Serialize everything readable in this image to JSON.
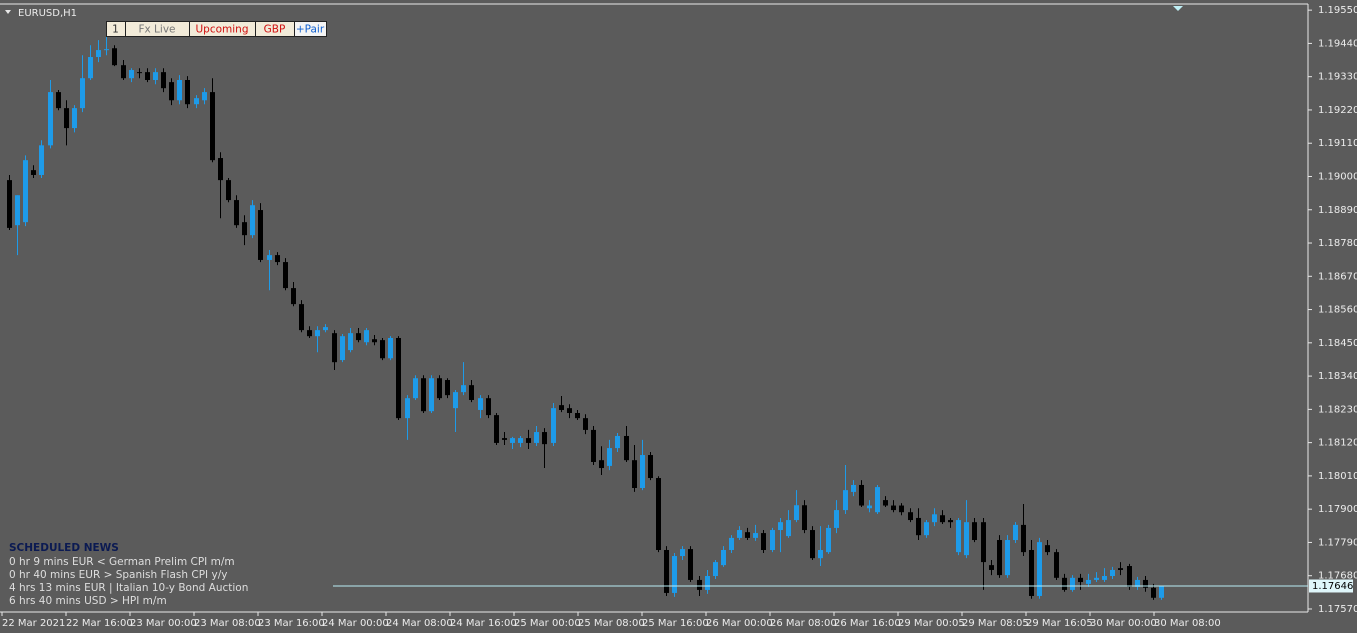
{
  "symbol": "EURUSD,H1",
  "buttons": [
    "1",
    "Fx Live",
    "Upcoming",
    "GBP",
    "+Pair"
  ],
  "news": {
    "title": "SCHEDULED NEWS",
    "items": [
      "0 hr 9 mins  EUR  <  German Prelim CPI m/m",
      "0 hr 40 mins  EUR  >  Spanish Flash CPI y/y",
      "4 hrs 13 mins  EUR  |  Italian 10-y Bond Auction",
      "6 hrs 40 mins  USD  >  HPI m/m"
    ]
  },
  "chart_data": {
    "type": "candlestick",
    "colors": {
      "up": "#1e9be9",
      "down": "#000000"
    },
    "ylim": [
      1.1756,
      1.19567
    ],
    "yticks": [
      {
        "value": 1.1955,
        "label": "1.19550"
      },
      {
        "value": 1.1944,
        "label": "1.19440"
      },
      {
        "value": 1.1933,
        "label": "1.19330"
      },
      {
        "value": 1.1922,
        "label": "1.19220"
      },
      {
        "value": 1.1911,
        "label": "1.19110"
      },
      {
        "value": 1.19,
        "label": "1.19000"
      },
      {
        "value": 1.1889,
        "label": "1.18890"
      },
      {
        "value": 1.1878,
        "label": "1.18780"
      },
      {
        "value": 1.1867,
        "label": "1.18670"
      },
      {
        "value": 1.1856,
        "label": "1.18560"
      },
      {
        "value": 1.1845,
        "label": "1.18450"
      },
      {
        "value": 1.1834,
        "label": "1.18340"
      },
      {
        "value": 1.1823,
        "label": "1.18230"
      },
      {
        "value": 1.1812,
        "label": "1.18120"
      },
      {
        "value": 1.1801,
        "label": "1.18010"
      },
      {
        "value": 1.179,
        "label": "1.17900"
      },
      {
        "value": 1.1779,
        "label": "1.17790"
      },
      {
        "value": 1.1768,
        "label": "1.17680"
      },
      {
        "value": 1.1757,
        "label": "1.17570"
      }
    ],
    "x_labels": [
      "22 Mar 2021",
      "22 Mar 16:00",
      "23 Mar 00:00",
      "23 Mar 08:00",
      "23 Mar 16:00",
      "24 Mar 00:00",
      "24 Mar 08:00",
      "24 Mar 16:00",
      "25 Mar 00:00",
      "25 Mar 08:00",
      "25 Mar 16:00",
      "26 Mar 00:00",
      "26 Mar 08:00",
      "26 Mar 16:00",
      "29 Mar 00:05",
      "29 Mar 08:05",
      "29 Mar 16:05",
      "30 Mar 00:00",
      "30 Mar 08:00"
    ],
    "current_price": 1.17646,
    "candles": [
      [
        1.18988,
        1.19005,
        1.18823,
        1.1883
      ],
      [
        1.18839,
        1.18938,
        1.1874,
        1.18938
      ],
      [
        1.18849,
        1.1907,
        1.18836,
        1.19054
      ],
      [
        1.19021,
        1.19037,
        1.18995,
        1.19005
      ],
      [
        1.19005,
        1.1912,
        1.18995,
        1.19103
      ],
      [
        1.19103,
        1.19319,
        1.19093,
        1.19279
      ],
      [
        1.19279,
        1.19286,
        1.19219,
        1.19226
      ],
      [
        1.19226,
        1.19252,
        1.19103,
        1.1916
      ],
      [
        1.1916,
        1.19236,
        1.19146,
        1.19226
      ],
      [
        1.19226,
        1.19401,
        1.19213,
        1.19325
      ],
      [
        1.19325,
        1.19434,
        1.19319,
        1.19395
      ],
      [
        1.19395,
        1.19451,
        1.19378,
        1.19418
      ],
      [
        1.19418,
        1.19461,
        1.19401,
        1.19421
      ],
      [
        1.19424,
        1.19434,
        1.19365,
        1.19368
      ],
      [
        1.19368,
        1.19385,
        1.19319,
        1.19325
      ],
      [
        1.19325,
        1.19358,
        1.19312,
        1.19352
      ],
      [
        1.19345,
        1.19358,
        1.19325,
        1.19342
      ],
      [
        1.19345,
        1.19358,
        1.19312,
        1.19319
      ],
      [
        1.19319,
        1.19358,
        1.19305,
        1.19345
      ],
      [
        1.19345,
        1.19358,
        1.19279,
        1.19292
      ],
      [
        1.19312,
        1.19325,
        1.19236,
        1.19252
      ],
      [
        1.19252,
        1.19335,
        1.19239,
        1.19319
      ],
      [
        1.19319,
        1.19332,
        1.19226,
        1.19239
      ],
      [
        1.19239,
        1.19269,
        1.19226,
        1.19259
      ],
      [
        1.19252,
        1.19292,
        1.19239,
        1.19279
      ],
      [
        1.19279,
        1.19325,
        1.19047,
        1.19054
      ],
      [
        1.19061,
        1.1908,
        1.18862,
        1.18988
      ],
      [
        1.18988,
        1.18995,
        1.18915,
        1.18922
      ],
      [
        1.18922,
        1.18938,
        1.1883,
        1.18839
      ],
      [
        1.18849,
        1.18872,
        1.18773,
        1.18806
      ],
      [
        1.18806,
        1.18922,
        1.18796,
        1.18905
      ],
      [
        1.18889,
        1.18912,
        1.18717,
        1.18724
      ],
      [
        1.18724,
        1.18757,
        1.18624,
        1.1874
      ],
      [
        1.1874,
        1.1875,
        1.18707,
        1.18717
      ],
      [
        1.18717,
        1.1873,
        1.18624,
        1.18631
      ],
      [
        1.18631,
        1.18651,
        1.18571,
        1.18578
      ],
      [
        1.18578,
        1.18591,
        1.18485,
        1.18492
      ],
      [
        1.18492,
        1.18505,
        1.18466,
        1.18472
      ],
      [
        1.18472,
        1.18505,
        1.18419,
        1.18492
      ],
      [
        1.18492,
        1.18512,
        1.18485,
        1.18502
      ],
      [
        1.18482,
        1.18492,
        1.1836,
        1.18386
      ],
      [
        1.18393,
        1.18479,
        1.18386,
        1.18472
      ],
      [
        1.18426,
        1.18499,
        1.18419,
        1.18482
      ],
      [
        1.18482,
        1.18499,
        1.18452,
        1.18459
      ],
      [
        1.18452,
        1.18499,
        1.18442,
        1.18492
      ],
      [
        1.18462,
        1.18476,
        1.18442,
        1.18452
      ],
      [
        1.18459,
        1.18466,
        1.18393,
        1.18399
      ],
      [
        1.18399,
        1.18472,
        1.18393,
        1.18466
      ],
      [
        1.18466,
        1.18472,
        1.18195,
        1.18201
      ],
      [
        1.18201,
        1.18277,
        1.18129,
        1.18267
      ],
      [
        1.18267,
        1.18343,
        1.18261,
        1.18333
      ],
      [
        1.18333,
        1.18343,
        1.18218,
        1.18224
      ],
      [
        1.18224,
        1.18343,
        1.18218,
        1.18333
      ],
      [
        1.18333,
        1.18343,
        1.18261,
        1.18267
      ],
      [
        1.18327,
        1.18333,
        1.18267,
        1.18277
      ],
      [
        1.18234,
        1.18294,
        1.18155,
        1.18287
      ],
      [
        1.18287,
        1.18386,
        1.18277,
        1.1831
      ],
      [
        1.1831,
        1.18327,
        1.18254,
        1.18261
      ],
      [
        1.18228,
        1.18277,
        1.18201,
        1.18267
      ],
      [
        1.18267,
        1.18277,
        1.18201,
        1.18211
      ],
      [
        1.18211,
        1.18218,
        1.18112,
        1.18119
      ],
      [
        1.18135,
        1.18155,
        1.18112,
        1.18129
      ],
      [
        1.18119,
        1.18139,
        1.18099,
        1.18135
      ],
      [
        1.18119,
        1.18142,
        1.18105,
        1.18135
      ],
      [
        1.18135,
        1.18162,
        1.18099,
        1.18119
      ],
      [
        1.18119,
        1.18175,
        1.18109,
        1.18155
      ],
      [
        1.18155,
        1.18168,
        1.18036,
        1.18115
      ],
      [
        1.18119,
        1.18251,
        1.18109,
        1.18234
      ],
      [
        1.18244,
        1.18274,
        1.18221,
        1.18228
      ],
      [
        1.18234,
        1.18247,
        1.18201,
        1.18218
      ],
      [
        1.18218,
        1.18228,
        1.18195,
        1.18201
      ],
      [
        1.18201,
        1.18214,
        1.18148,
        1.18162
      ],
      [
        1.18162,
        1.18175,
        1.18046,
        1.18056
      ],
      [
        1.18062,
        1.18108,
        1.18013,
        1.18036
      ],
      [
        1.18043,
        1.18129,
        1.18029,
        1.18102
      ],
      [
        1.18102,
        1.18152,
        1.18089,
        1.18142
      ],
      [
        1.18142,
        1.18175,
        1.18056,
        1.18062
      ],
      [
        1.18062,
        1.18112,
        1.17957,
        1.1797
      ],
      [
        1.1797,
        1.18129,
        1.17963,
        1.18079
      ],
      [
        1.18079,
        1.18089,
        1.17996,
        1.18003
      ],
      [
        1.18003,
        1.18009,
        1.17758,
        1.17765
      ],
      [
        1.17765,
        1.17778,
        1.17613,
        1.17623
      ],
      [
        1.17623,
        1.17755,
        1.1761,
        1.17745
      ],
      [
        1.17745,
        1.17778,
        1.17732,
        1.17768
      ],
      [
        1.17768,
        1.17778,
        1.17659,
        1.17666
      ],
      [
        1.17666,
        1.17679,
        1.17613,
        1.17633
      ],
      [
        1.17633,
        1.17699,
        1.1762,
        1.17679
      ],
      [
        1.17679,
        1.17732,
        1.17669,
        1.17725
      ],
      [
        1.17715,
        1.17778,
        1.17709,
        1.17765
      ],
      [
        1.17765,
        1.17814,
        1.17755,
        1.17805
      ],
      [
        1.17805,
        1.17844,
        1.17798,
        1.17831
      ],
      [
        1.17824,
        1.17838,
        1.17798,
        1.17805
      ],
      [
        1.17805,
        1.17848,
        1.17795,
        1.17821
      ],
      [
        1.17821,
        1.17831,
        1.17755,
        1.17765
      ],
      [
        1.17765,
        1.17838,
        1.17758,
        1.17831
      ],
      [
        1.17831,
        1.17871,
        1.17758,
        1.17857
      ],
      [
        1.17811,
        1.17897,
        1.17805,
        1.17864
      ],
      [
        1.17864,
        1.17963,
        1.17857,
        1.17913
      ],
      [
        1.17913,
        1.1793,
        1.17821,
        1.17831
      ],
      [
        1.17831,
        1.17844,
        1.17732,
        1.17738
      ],
      [
        1.17738,
        1.17844,
        1.17712,
        1.17765
      ],
      [
        1.17758,
        1.17848,
        1.17752,
        1.17838
      ],
      [
        1.17838,
        1.1793,
        1.17821,
        1.17897
      ],
      [
        1.17897,
        1.18046,
        1.17884,
        1.17963
      ],
      [
        1.17957,
        1.17996,
        1.17943,
        1.1798
      ],
      [
        1.1798,
        1.17996,
        1.17907,
        1.17912
      ],
      [
        1.17903,
        1.1793,
        1.1789,
        1.17912
      ],
      [
        1.1789,
        1.1798,
        1.17884,
        1.17973
      ],
      [
        1.1793,
        1.17943,
        1.17907,
        1.17912
      ],
      [
        1.17912,
        1.1793,
        1.1789,
        1.17897
      ],
      [
        1.17912,
        1.1792,
        1.1788,
        1.1789
      ],
      [
        1.1789,
        1.17903,
        1.17857,
        1.17864
      ],
      [
        1.17871,
        1.17903,
        1.17798,
        1.17814
      ],
      [
        1.17814,
        1.17864,
        1.17805,
        1.17857
      ],
      [
        1.17857,
        1.17903,
        1.17844,
        1.17883
      ],
      [
        1.1788,
        1.17897,
        1.17851,
        1.17857
      ],
      [
        1.17864,
        1.17871,
        1.17838,
        1.17857
      ],
      [
        1.17758,
        1.17871,
        1.17748,
        1.17864
      ],
      [
        1.17748,
        1.1793,
        1.17738,
        1.17857
      ],
      [
        1.17857,
        1.17871,
        1.17791,
        1.17798
      ],
      [
        1.17857,
        1.17871,
        1.17633,
        1.17725
      ],
      [
        1.17715,
        1.17732,
        1.17682,
        1.17699
      ],
      [
        1.17798,
        1.17814,
        1.17673,
        1.17682
      ],
      [
        1.17682,
        1.17814,
        1.17673,
        1.17798
      ],
      [
        1.17798,
        1.17857,
        1.17788,
        1.17848
      ],
      [
        1.17848,
        1.17917,
        1.17745,
        1.17758
      ],
      [
        1.17765,
        1.17798,
        1.17604,
        1.17613
      ],
      [
        1.17613,
        1.17805,
        1.17604,
        1.17791
      ],
      [
        1.17781,
        1.17798,
        1.17748,
        1.17758
      ],
      [
        1.17758,
        1.17768,
        1.17666,
        1.17673
      ],
      [
        1.17673,
        1.17686,
        1.17627,
        1.17633
      ],
      [
        1.17633,
        1.17682,
        1.17627,
        1.17673
      ],
      [
        1.17673,
        1.17686,
        1.17633,
        1.17659
      ],
      [
        1.17653,
        1.17686,
        1.17643,
        1.17666
      ],
      [
        1.17666,
        1.17692,
        1.17659,
        1.17673
      ],
      [
        1.17666,
        1.17705,
        1.17659,
        1.17679
      ],
      [
        1.17679,
        1.17709,
        1.17669,
        1.17699
      ],
      [
        1.17705,
        1.17725,
        1.17682,
        1.17699
      ],
      [
        1.17712,
        1.17719,
        1.17633,
        1.17643
      ],
      [
        1.17643,
        1.17676,
        1.17633,
        1.17666
      ],
      [
        1.17666,
        1.17679,
        1.17627,
        1.1764
      ],
      [
        1.1764,
        1.17653,
        1.176,
        1.17607
      ],
      [
        1.17607,
        1.17646,
        1.176,
        1.17646
      ]
    ]
  }
}
